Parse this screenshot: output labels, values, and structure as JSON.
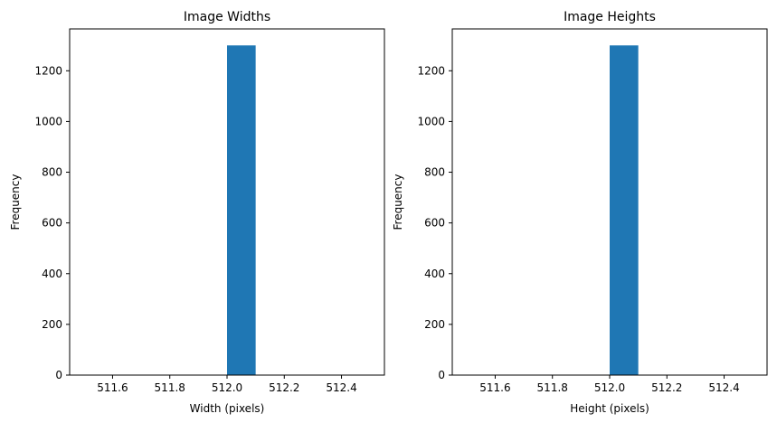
{
  "colors": {
    "bar": "#1f77b4",
    "axes": "#000000",
    "background": "#ffffff"
  },
  "chart_data": [
    {
      "type": "bar",
      "title": "Image Widths",
      "xlabel": "Width (pixels)",
      "ylabel": "Frequency",
      "xlim": [
        511.45,
        512.55
      ],
      "ylim": [
        0,
        1365
      ],
      "x_ticks": [
        511.6,
        511.8,
        512.0,
        512.2,
        512.4
      ],
      "x_tick_labels": [
        "511.6",
        "511.8",
        "512.0",
        "512.2",
        "512.4"
      ],
      "y_ticks": [
        0,
        200,
        400,
        600,
        800,
        1000,
        1200
      ],
      "y_tick_labels": [
        "0",
        "200",
        "400",
        "600",
        "800",
        "1000",
        "1200"
      ],
      "bins": [
        {
          "x0": 512.0,
          "x1": 512.1,
          "count": 1300
        }
      ],
      "grid": false,
      "legend": "none"
    },
    {
      "type": "bar",
      "title": "Image Heights",
      "xlabel": "Height (pixels)",
      "ylabel": "Frequency",
      "xlim": [
        511.45,
        512.55
      ],
      "ylim": [
        0,
        1365
      ],
      "x_ticks": [
        511.6,
        511.8,
        512.0,
        512.2,
        512.4
      ],
      "x_tick_labels": [
        "511.6",
        "511.8",
        "512.0",
        "512.2",
        "512.4"
      ],
      "y_ticks": [
        0,
        200,
        400,
        600,
        800,
        1000,
        1200
      ],
      "y_tick_labels": [
        "0",
        "200",
        "400",
        "600",
        "800",
        "1000",
        "1200"
      ],
      "bins": [
        {
          "x0": 512.0,
          "x1": 512.1,
          "count": 1300
        }
      ],
      "grid": false,
      "legend": "none"
    }
  ]
}
